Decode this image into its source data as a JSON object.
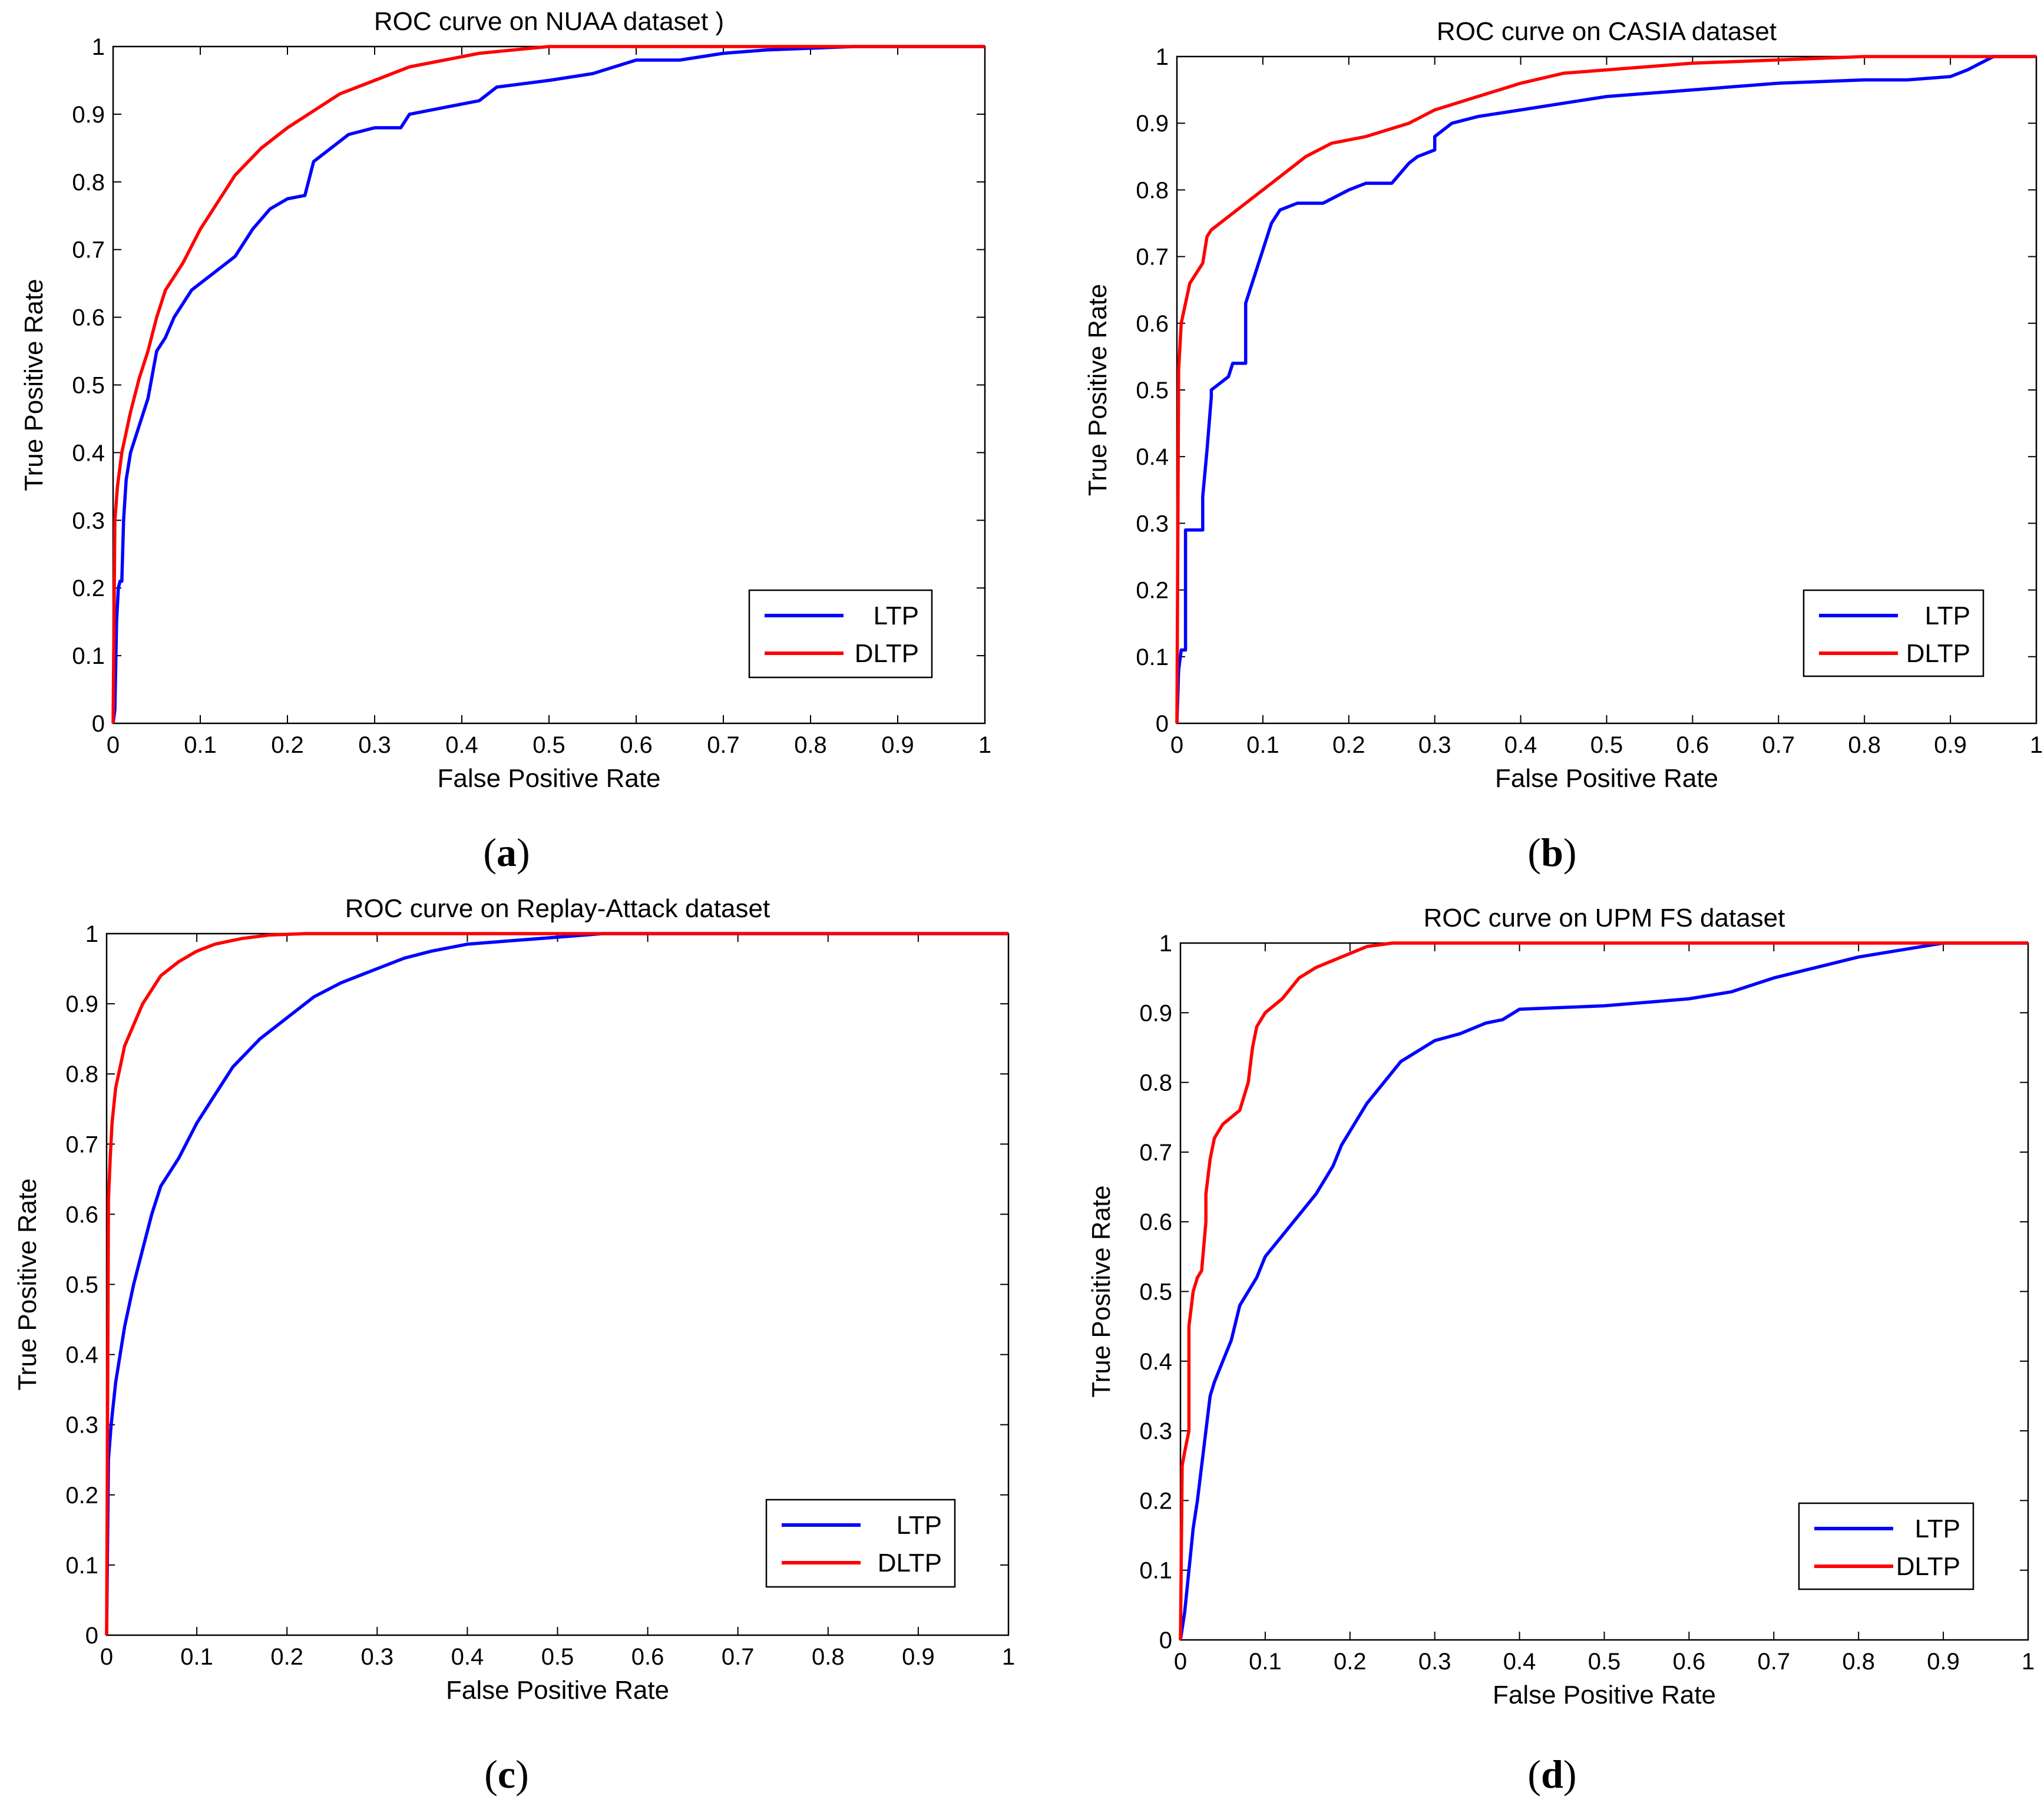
{
  "chart_data": [
    {
      "id": "a",
      "type": "line",
      "title": "ROC curve on NUAA dataset )",
      "xlabel": "False Positive Rate",
      "ylabel": "True Positive Rate",
      "caption": "(a)",
      "xlim": [
        0,
        1
      ],
      "ylim": [
        0,
        1
      ],
      "xticks": [
        "0",
        "0.1",
        "0.2",
        "0.3",
        "0.4",
        "0.5",
        "0.6",
        "0.7",
        "0.8",
        "0.9",
        "1"
      ],
      "yticks": [
        "0",
        "0.1",
        "0.2",
        "0.3",
        "0.4",
        "0.5",
        "0.6",
        "0.7",
        "0.8",
        "0.9",
        "1"
      ],
      "legend_position": "bottom-right",
      "series": [
        {
          "name": "LTP",
          "color": "#0000ff",
          "x": [
            0,
            0.002,
            0.004,
            0.006,
            0.008,
            0.01,
            0.012,
            0.015,
            0.02,
            0.025,
            0.03,
            0.035,
            0.04,
            0.05,
            0.06,
            0.07,
            0.08,
            0.09,
            0.1,
            0.12,
            0.14,
            0.16,
            0.18,
            0.2,
            0.22,
            0.23,
            0.25,
            0.27,
            0.3,
            0.33,
            0.34,
            0.38,
            0.42,
            0.44,
            0.5,
            0.55,
            0.6,
            0.65,
            0.7,
            0.75,
            0.85,
            1.0
          ],
          "y": [
            0,
            0.02,
            0.15,
            0.2,
            0.21,
            0.21,
            0.3,
            0.36,
            0.4,
            0.42,
            0.44,
            0.46,
            0.48,
            0.55,
            0.57,
            0.6,
            0.62,
            0.64,
            0.65,
            0.67,
            0.69,
            0.73,
            0.76,
            0.775,
            0.78,
            0.83,
            0.85,
            0.87,
            0.88,
            0.88,
            0.9,
            0.91,
            0.92,
            0.94,
            0.95,
            0.96,
            0.98,
            0.98,
            0.99,
            0.995,
            1.0,
            1.0
          ]
        },
        {
          "name": "DLTP",
          "color": "#ff0000",
          "x": [
            0,
            0.002,
            0.005,
            0.01,
            0.015,
            0.02,
            0.03,
            0.04,
            0.05,
            0.06,
            0.08,
            0.1,
            0.12,
            0.14,
            0.17,
            0.2,
            0.23,
            0.26,
            0.3,
            0.34,
            0.38,
            0.42,
            0.46,
            0.5,
            0.55,
            1.0
          ],
          "y": [
            0,
            0.3,
            0.35,
            0.4,
            0.43,
            0.46,
            0.51,
            0.55,
            0.6,
            0.64,
            0.68,
            0.73,
            0.77,
            0.81,
            0.85,
            0.88,
            0.905,
            0.93,
            0.95,
            0.97,
            0.98,
            0.99,
            0.995,
            1.0,
            1.0,
            1.0
          ]
        }
      ]
    },
    {
      "id": "b",
      "type": "line",
      "title": "ROC curve on  CASIA dataset",
      "xlabel": "False Positive Rate",
      "ylabel": "True Positive Rate",
      "caption": "(b)",
      "xlim": [
        0,
        1
      ],
      "ylim": [
        0,
        1
      ],
      "xticks": [
        "0",
        "0.1",
        "0.2",
        "0.3",
        "0.4",
        "0.5",
        "0.6",
        "0.7",
        "0.8",
        "0.9",
        "1"
      ],
      "yticks": [
        "0",
        "0.1",
        "0.2",
        "0.3",
        "0.4",
        "0.5",
        "0.6",
        "0.7",
        "0.8",
        "0.9",
        "1"
      ],
      "legend_position": "bottom-right",
      "series": [
        {
          "name": "LTP",
          "color": "#0000ff",
          "x": [
            0,
            0.002,
            0.005,
            0.01,
            0.01,
            0.03,
            0.03,
            0.035,
            0.04,
            0.04,
            0.06,
            0.065,
            0.08,
            0.08,
            0.09,
            0.1,
            0.11,
            0.12,
            0.14,
            0.17,
            0.2,
            0.22,
            0.25,
            0.27,
            0.28,
            0.3,
            0.3,
            0.32,
            0.35,
            0.4,
            0.45,
            0.5,
            0.6,
            0.7,
            0.8,
            0.85,
            0.9,
            0.92,
            0.95,
            1.0
          ],
          "y": [
            0,
            0.08,
            0.11,
            0.11,
            0.29,
            0.29,
            0.34,
            0.41,
            0.49,
            0.5,
            0.52,
            0.54,
            0.54,
            0.63,
            0.67,
            0.71,
            0.75,
            0.77,
            0.78,
            0.78,
            0.8,
            0.81,
            0.81,
            0.84,
            0.85,
            0.86,
            0.88,
            0.9,
            0.91,
            0.92,
            0.93,
            0.94,
            0.95,
            0.96,
            0.965,
            0.965,
            0.97,
            0.98,
            1.0,
            1.0
          ]
        },
        {
          "name": "DLTP",
          "color": "#ff0000",
          "x": [
            0,
            0.002,
            0.005,
            0.01,
            0.015,
            0.02,
            0.03,
            0.035,
            0.04,
            0.06,
            0.08,
            0.1,
            0.12,
            0.15,
            0.18,
            0.22,
            0.27,
            0.3,
            0.35,
            0.4,
            0.45,
            0.5,
            0.6,
            0.7,
            0.8,
            0.9,
            1.0
          ],
          "y": [
            0,
            0.53,
            0.6,
            0.63,
            0.66,
            0.67,
            0.69,
            0.73,
            0.74,
            0.76,
            0.78,
            0.8,
            0.82,
            0.85,
            0.87,
            0.88,
            0.9,
            0.92,
            0.94,
            0.96,
            0.975,
            0.98,
            0.99,
            0.995,
            1.0,
            1.0,
            1.0
          ]
        }
      ]
    },
    {
      "id": "c",
      "type": "line",
      "title": "ROC curve on  Replay-Attack dataset",
      "xlabel": "False Positive Rate",
      "ylabel": "True Positive Rate",
      "caption": "(c)",
      "xlim": [
        0,
        1
      ],
      "ylim": [
        0,
        1
      ],
      "xticks": [
        "0",
        "0.1",
        "0.2",
        "0.3",
        "0.4",
        "0.5",
        "0.6",
        "0.7",
        "0.8",
        "0.9",
        "1"
      ],
      "yticks": [
        "0",
        "0.1",
        "0.2",
        "0.3",
        "0.4",
        "0.5",
        "0.6",
        "0.7",
        "0.8",
        "0.9",
        "1"
      ],
      "legend_position": "bottom-right",
      "series": [
        {
          "name": "LTP",
          "color": "#0000ff",
          "x": [
            0,
            0.002,
            0.005,
            0.01,
            0.02,
            0.03,
            0.04,
            0.05,
            0.06,
            0.08,
            0.1,
            0.12,
            0.14,
            0.17,
            0.2,
            0.23,
            0.26,
            0.3,
            0.33,
            0.36,
            0.4,
            0.45,
            0.5,
            0.55,
            1.0
          ],
          "y": [
            0,
            0.25,
            0.3,
            0.36,
            0.44,
            0.5,
            0.55,
            0.6,
            0.64,
            0.68,
            0.73,
            0.77,
            0.81,
            0.85,
            0.88,
            0.91,
            0.93,
            0.95,
            0.965,
            0.975,
            0.985,
            0.99,
            0.995,
            1.0,
            1.0
          ]
        },
        {
          "name": "DLTP",
          "color": "#ff0000",
          "x": [
            0,
            0.002,
            0.004,
            0.006,
            0.01,
            0.015,
            0.02,
            0.03,
            0.04,
            0.05,
            0.06,
            0.08,
            0.1,
            0.12,
            0.15,
            0.18,
            0.22,
            1.0
          ],
          "y": [
            0,
            0.62,
            0.68,
            0.73,
            0.78,
            0.81,
            0.84,
            0.87,
            0.9,
            0.92,
            0.94,
            0.96,
            0.975,
            0.985,
            0.993,
            0.998,
            1.0,
            1.0
          ]
        }
      ]
    },
    {
      "id": "d",
      "type": "line",
      "title": "ROC curve on UPM FS dataset",
      "xlabel": "False Positive Rate",
      "ylabel": "True Positive Rate",
      "caption": "(d)",
      "xlim": [
        0,
        1
      ],
      "ylim": [
        0,
        1
      ],
      "xticks": [
        "0",
        "0.1",
        "0.2",
        "0.3",
        "0.4",
        "0.5",
        "0.6",
        "0.7",
        "0.8",
        "0.9",
        "1"
      ],
      "yticks": [
        "0",
        "0.1",
        "0.2",
        "0.3",
        "0.4",
        "0.5",
        "0.6",
        "0.7",
        "0.8",
        "0.9",
        "1"
      ],
      "legend_position": "bottom-right",
      "series": [
        {
          "name": "LTP",
          "color": "#0000ff",
          "x": [
            0,
            0.005,
            0.01,
            0.015,
            0.02,
            0.025,
            0.03,
            0.035,
            0.04,
            0.05,
            0.06,
            0.07,
            0.08,
            0.09,
            0.1,
            0.12,
            0.14,
            0.16,
            0.18,
            0.19,
            0.2,
            0.22,
            0.24,
            0.26,
            0.28,
            0.3,
            0.33,
            0.36,
            0.38,
            0.4,
            0.5,
            0.55,
            0.6,
            0.65,
            0.7,
            0.75,
            0.8,
            0.85,
            0.9,
            1.0
          ],
          "y": [
            0,
            0.04,
            0.1,
            0.16,
            0.2,
            0.25,
            0.3,
            0.35,
            0.37,
            0.4,
            0.43,
            0.48,
            0.5,
            0.52,
            0.55,
            0.58,
            0.61,
            0.64,
            0.68,
            0.71,
            0.73,
            0.77,
            0.8,
            0.83,
            0.845,
            0.86,
            0.87,
            0.885,
            0.89,
            0.905,
            0.91,
            0.915,
            0.92,
            0.93,
            0.95,
            0.965,
            0.98,
            0.99,
            1.0,
            1.0
          ]
        },
        {
          "name": "DLTP",
          "color": "#ff0000",
          "x": [
            0,
            0.002,
            0.005,
            0.01,
            0.01,
            0.015,
            0.02,
            0.025,
            0.03,
            0.03,
            0.035,
            0.04,
            0.05,
            0.06,
            0.07,
            0.08,
            0.085,
            0.09,
            0.1,
            0.12,
            0.14,
            0.16,
            0.18,
            0.2,
            0.22,
            0.25,
            0.3,
            0.35,
            1.0
          ],
          "y": [
            0,
            0.25,
            0.27,
            0.3,
            0.45,
            0.5,
            0.52,
            0.53,
            0.6,
            0.64,
            0.69,
            0.72,
            0.74,
            0.75,
            0.76,
            0.8,
            0.85,
            0.88,
            0.9,
            0.92,
            0.95,
            0.965,
            0.975,
            0.985,
            0.995,
            1.0,
            1.0,
            1.0,
            1.0
          ]
        }
      ]
    }
  ]
}
